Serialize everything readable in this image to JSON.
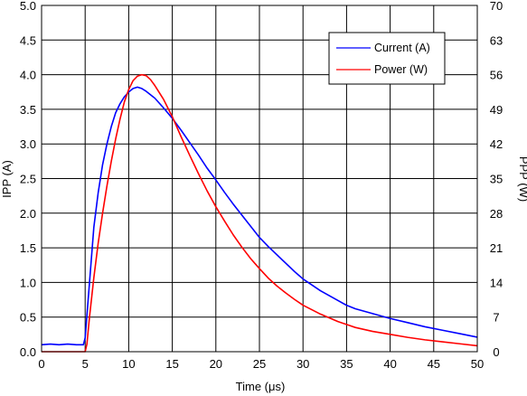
{
  "chart_data": {
    "type": "line",
    "title": "",
    "xlabel": "Time (μs)",
    "ylabel": "IPP (A)",
    "y2label": "PPP (W)",
    "xlim": [
      0,
      50
    ],
    "ylim": [
      0,
      5
    ],
    "y2lim": [
      0,
      70
    ],
    "xticks": [
      "0",
      "5",
      "10",
      "15",
      "20",
      "25",
      "30",
      "35",
      "40",
      "45",
      "50"
    ],
    "yticks": [
      "0.0",
      "0.5",
      "1.0",
      "1.5",
      "2.0",
      "2.5",
      "3.0",
      "3.5",
      "4.0",
      "4.5",
      "5.0"
    ],
    "y2ticks": [
      "0",
      "7",
      "14",
      "21",
      "28",
      "35",
      "42",
      "49",
      "56",
      "63",
      "70"
    ],
    "grid": true,
    "legend_position": "top-right",
    "series": [
      {
        "name": "Current (A)",
        "axis": "left",
        "color": "#0000ff",
        "x": [
          0,
          1,
          2,
          3,
          4,
          4.8,
          5,
          5.5,
          6,
          6.5,
          7,
          7.5,
          8,
          8.5,
          9,
          9.5,
          10,
          10.5,
          11,
          11.5,
          12,
          13,
          14,
          15,
          16,
          17,
          18,
          19,
          20,
          21,
          22,
          23,
          24,
          25,
          26,
          27,
          28,
          29,
          30,
          32,
          34,
          35,
          36,
          38,
          40,
          42,
          44,
          46,
          48,
          50
        ],
        "y": [
          0.1,
          0.11,
          0.1,
          0.11,
          0.1,
          0.1,
          0.2,
          1.0,
          1.8,
          2.3,
          2.7,
          3.0,
          3.25,
          3.45,
          3.58,
          3.68,
          3.75,
          3.8,
          3.82,
          3.8,
          3.76,
          3.66,
          3.52,
          3.37,
          3.2,
          3.02,
          2.84,
          2.65,
          2.48,
          2.3,
          2.13,
          1.97,
          1.81,
          1.65,
          1.52,
          1.4,
          1.28,
          1.16,
          1.05,
          0.88,
          0.74,
          0.67,
          0.62,
          0.55,
          0.48,
          0.42,
          0.36,
          0.31,
          0.26,
          0.21
        ]
      },
      {
        "name": "Power (W)",
        "axis": "right",
        "color": "#ff0000",
        "x": [
          0,
          1,
          2,
          3,
          4,
          5,
          5.2,
          5.5,
          6,
          6.5,
          7,
          7.5,
          8,
          8.5,
          9,
          9.5,
          10,
          10.5,
          11,
          11.5,
          12,
          12.5,
          13,
          14,
          15,
          16,
          17,
          18,
          19,
          20,
          21,
          22,
          23,
          24,
          25,
          26,
          27,
          28,
          29,
          30,
          32,
          34,
          35,
          36,
          38,
          40,
          42,
          44,
          46,
          48,
          50
        ],
        "y": [
          0,
          0,
          0,
          0,
          0,
          0,
          1.5,
          7,
          15,
          22,
          28,
          33.5,
          38.5,
          43,
          47,
          50.5,
          53,
          54.8,
          55.7,
          56,
          55.8,
          55,
          53.8,
          51,
          47.5,
          43.5,
          39.7,
          36,
          32.5,
          29.3,
          26.4,
          23.6,
          21.1,
          18.8,
          16.8,
          14.9,
          13.3,
          11.9,
          10.6,
          9.4,
          7.6,
          6.1,
          5.5,
          4.9,
          4.1,
          3.5,
          2.9,
          2.4,
          2.0,
          1.6,
          1.2
        ]
      }
    ]
  }
}
